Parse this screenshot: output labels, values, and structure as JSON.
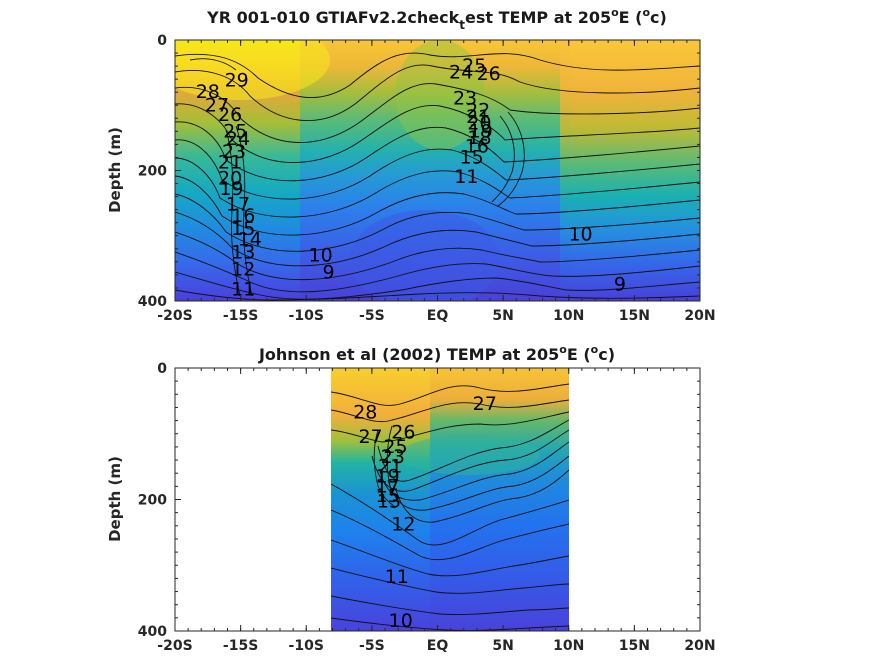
{
  "chart_data": [
    {
      "type": "heatmap",
      "title": "YR 001-010 GTIAFv2.2check",
      "title_sub": "t",
      "title_rest": "est TEMP at 205",
      "title_deg": "o",
      "title_unit_pre": "E (",
      "title_unit_sup": "o",
      "title_unit_post": "c)",
      "ylabel": "Depth (m)",
      "xlim": [
        -20,
        20
      ],
      "ylim": [
        400,
        0
      ],
      "x_ticks": [
        -20,
        -15,
        -10,
        -5,
        0,
        5,
        10,
        15,
        20
      ],
      "x_tick_labels": [
        "-20S",
        "-15S",
        "-10S",
        "-5S",
        "EQ",
        "5N",
        "10N",
        "15N",
        "20N"
      ],
      "y_ticks": [
        0,
        200,
        400
      ],
      "y_tick_labels": [
        "0",
        "200",
        "400"
      ],
      "data_extent": [
        -20,
        20
      ],
      "contour_labels": [
        {
          "text": "29",
          "lat": -15.3,
          "depth": 62
        },
        {
          "text": "28",
          "lat": -17.5,
          "depth": 80
        },
        {
          "text": "27",
          "lat": -16.8,
          "depth": 100
        },
        {
          "text": "26",
          "lat": -15.8,
          "depth": 115
        },
        {
          "text": "25",
          "lat": -15.4,
          "depth": 140
        },
        {
          "text": "24",
          "lat": -15.2,
          "depth": 152
        },
        {
          "text": "23",
          "lat": -15.5,
          "depth": 172
        },
        {
          "text": "21",
          "lat": -15.8,
          "depth": 188
        },
        {
          "text": "20",
          "lat": -15.8,
          "depth": 212
        },
        {
          "text": "19",
          "lat": -15.7,
          "depth": 228
        },
        {
          "text": "17",
          "lat": -15.2,
          "depth": 252
        },
        {
          "text": "16",
          "lat": -14.8,
          "depth": 270
        },
        {
          "text": "15",
          "lat": -14.8,
          "depth": 290
        },
        {
          "text": "14",
          "lat": -14.3,
          "depth": 306
        },
        {
          "text": "13",
          "lat": -14.8,
          "depth": 326
        },
        {
          "text": "12",
          "lat": -14.8,
          "depth": 352
        },
        {
          "text": "11",
          "lat": -14.8,
          "depth": 382
        },
        {
          "text": "24",
          "lat": 1.8,
          "depth": 50
        },
        {
          "text": "25",
          "lat": 2.8,
          "depth": 40
        },
        {
          "text": "26",
          "lat": 3.9,
          "depth": 52
        },
        {
          "text": "23",
          "lat": 2.1,
          "depth": 90
        },
        {
          "text": "22",
          "lat": 3.1,
          "depth": 108
        },
        {
          "text": "21",
          "lat": 3.1,
          "depth": 118
        },
        {
          "text": "20",
          "lat": 3.2,
          "depth": 128
        },
        {
          "text": "19",
          "lat": 3.3,
          "depth": 140
        },
        {
          "text": "18",
          "lat": 3.2,
          "depth": 150
        },
        {
          "text": "16",
          "lat": 3.0,
          "depth": 163
        },
        {
          "text": "15",
          "lat": 2.6,
          "depth": 180
        },
        {
          "text": "11",
          "lat": 2.2,
          "depth": 210
        },
        {
          "text": "10",
          "lat": -8.9,
          "depth": 330
        },
        {
          "text": "9",
          "lat": -8.3,
          "depth": 356
        },
        {
          "text": "10",
          "lat": 10.9,
          "depth": 298
        },
        {
          "text": "9",
          "lat": 13.9,
          "depth": 375
        }
      ]
    },
    {
      "type": "heatmap",
      "title": "Johnson et al (2002) TEMP at 205",
      "title_deg": "o",
      "title_unit_pre": "E (",
      "title_unit_sup": "o",
      "title_unit_post": "c)",
      "ylabel": "Depth (m)",
      "xlim": [
        -20,
        20
      ],
      "ylim": [
        400,
        0
      ],
      "x_ticks": [
        -20,
        -15,
        -10,
        -5,
        0,
        5,
        10,
        15,
        20
      ],
      "x_tick_labels": [
        "-20S",
        "-15S",
        "-10S",
        "-5S",
        "EQ",
        "5N",
        "10N",
        "15N",
        "20N"
      ],
      "y_ticks": [
        0,
        200,
        400
      ],
      "y_tick_labels": [
        "0",
        "200",
        "400"
      ],
      "data_extent": [
        -8,
        10
      ],
      "contour_labels": [
        {
          "text": "28",
          "lat": -5.5,
          "depth": 68
        },
        {
          "text": "27",
          "lat": -5.1,
          "depth": 105
        },
        {
          "text": "26",
          "lat": -2.6,
          "depth": 98
        },
        {
          "text": "25",
          "lat": -3.2,
          "depth": 120
        },
        {
          "text": "23",
          "lat": -3.4,
          "depth": 135
        },
        {
          "text": "21",
          "lat": -3.6,
          "depth": 150
        },
        {
          "text": "19",
          "lat": -3.8,
          "depth": 165
        },
        {
          "text": "17",
          "lat": -3.8,
          "depth": 180
        },
        {
          "text": "15",
          "lat": -3.8,
          "depth": 195
        },
        {
          "text": "13",
          "lat": -3.7,
          "depth": 203
        },
        {
          "text": "12",
          "lat": -2.6,
          "depth": 238
        },
        {
          "text": "11",
          "lat": -3.1,
          "depth": 318
        },
        {
          "text": "10",
          "lat": -2.8,
          "depth": 385
        },
        {
          "text": "27",
          "lat": 3.6,
          "depth": 55
        }
      ]
    }
  ]
}
